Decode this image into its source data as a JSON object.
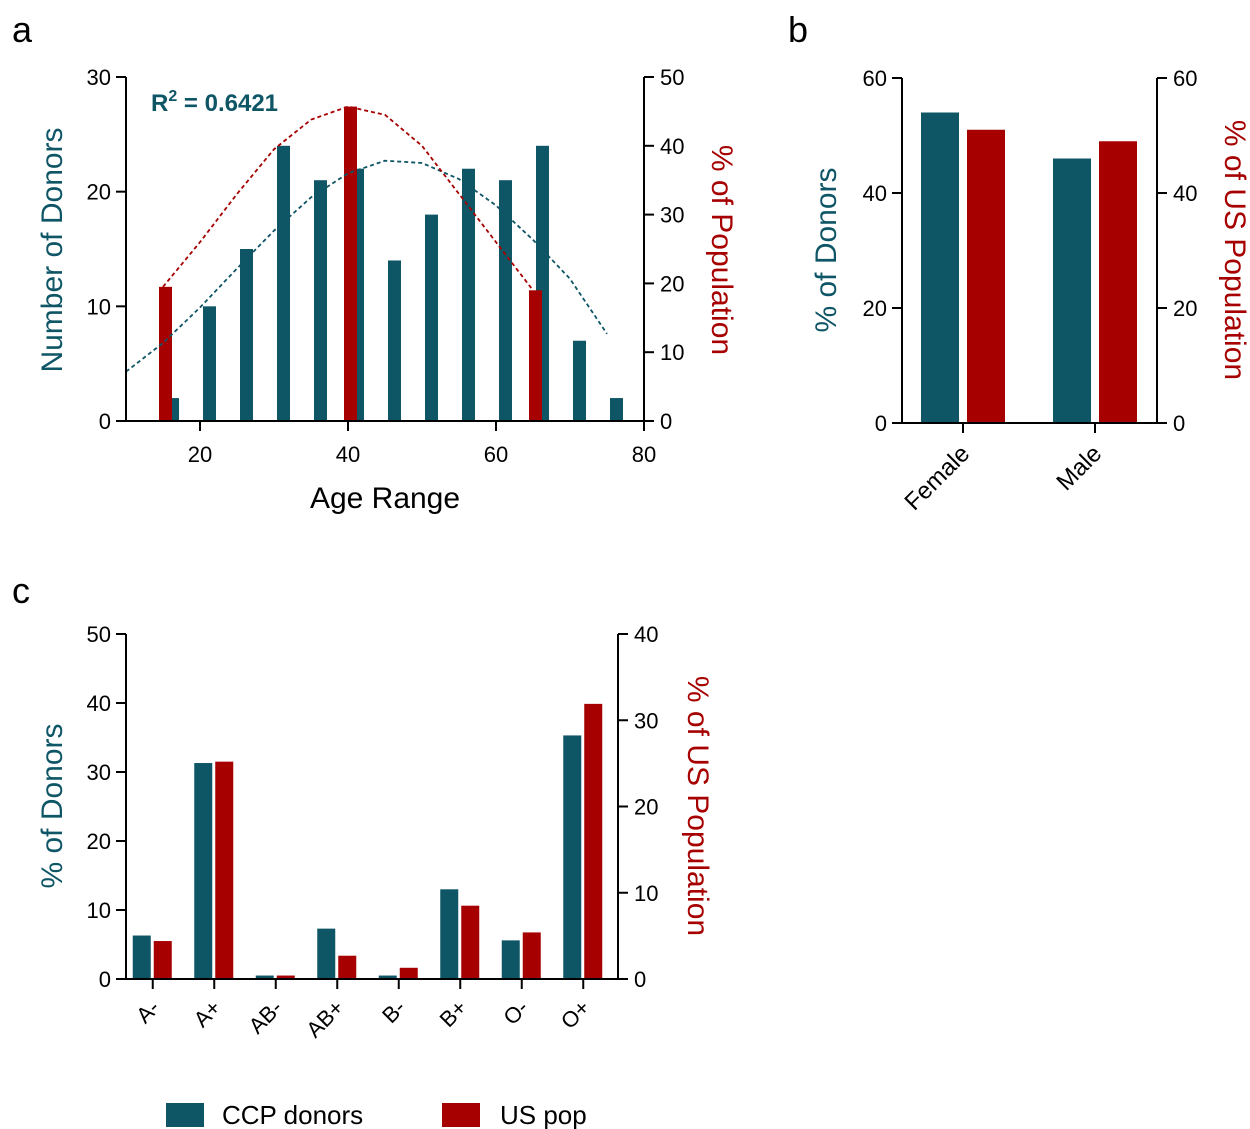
{
  "colors": {
    "donors": "#0e5566",
    "uspop": "#a60000"
  },
  "legend": [
    {
      "label": "CCP donors",
      "color": "#0e5566"
    },
    {
      "label": "US pop",
      "color": "#a60000"
    }
  ],
  "chart_data": [
    {
      "panel": "a",
      "type": "bar",
      "xlabel": "Age Range",
      "ylabel": "Number of Donors",
      "y2label": "% of Population",
      "xlim": [
        10,
        80
      ],
      "xticks": [
        20,
        40,
        60,
        80
      ],
      "ylim": [
        0,
        30
      ],
      "yticks": [
        0,
        10,
        20,
        30
      ],
      "y2lim": [
        0,
        50
      ],
      "y2ticks": [
        0,
        10,
        20,
        30,
        40,
        50
      ],
      "r2_label": "R",
      "r2_sup": "2",
      "r2_value": " = 0.6421",
      "series": [
        {
          "name": "CCP donors",
          "axis": "left",
          "x": [
            10,
            15,
            20,
            25,
            30,
            35,
            40,
            45,
            50,
            55,
            60,
            65,
            70,
            75
          ],
          "values": [
            0,
            2,
            10,
            15,
            24,
            21,
            22,
            14,
            18,
            22,
            21,
            24,
            7,
            2
          ]
        },
        {
          "name": "US pop",
          "axis": "right",
          "x": [
            15,
            40,
            65
          ],
          "values": [
            19.5,
            45.7,
            19.0
          ]
        }
      ],
      "fits": [
        {
          "series": "CCP donors",
          "style": "dashed",
          "axis": "left",
          "x": [
            10,
            15,
            20,
            25,
            30,
            35,
            40,
            45,
            50,
            55,
            60,
            65,
            70,
            75
          ],
          "values": [
            4.3,
            6.8,
            9.9,
            13.3,
            16.6,
            19.5,
            21.6,
            22.7,
            22.5,
            21.1,
            18.8,
            15.8,
            12.4,
            7.6
          ]
        },
        {
          "series": "US pop",
          "style": "dashed",
          "axis": "right",
          "x": [
            15,
            20,
            25,
            30,
            35,
            40,
            45,
            50,
            55,
            60,
            65
          ],
          "values": [
            19.5,
            26,
            33,
            39.5,
            43.8,
            45.7,
            44.5,
            40,
            33,
            26,
            19
          ]
        }
      ]
    },
    {
      "panel": "b",
      "type": "bar",
      "ylabel": "% of Donors",
      "y2label": "% of US Population",
      "categories": [
        "Female",
        "Male"
      ],
      "ylim": [
        0,
        60
      ],
      "yticks": [
        0,
        20,
        40,
        60
      ],
      "y2lim": [
        0,
        60
      ],
      "y2ticks": [
        0,
        20,
        40,
        60
      ],
      "series": [
        {
          "name": "CCP donors",
          "axis": "left",
          "values": [
            54,
            46
          ]
        },
        {
          "name": "US pop",
          "axis": "right",
          "values": [
            51,
            49
          ]
        }
      ]
    },
    {
      "panel": "c",
      "type": "bar",
      "ylabel": "% of Donors",
      "y2label": "% of US Population",
      "categories": [
        "A-",
        "A+",
        "AB-",
        "AB+",
        "B-",
        "B+",
        "O-",
        "O+"
      ],
      "ylim": [
        0,
        50
      ],
      "yticks": [
        0,
        10,
        20,
        30,
        40,
        50
      ],
      "y2lim": [
        0,
        40
      ],
      "y2ticks": [
        0,
        10,
        20,
        30,
        40
      ],
      "series": [
        {
          "name": "CCP donors",
          "axis": "left",
          "values": [
            6.3,
            31.3,
            0.5,
            7.3,
            0.5,
            13,
            5.6,
            35.3
          ]
        },
        {
          "name": "US pop",
          "axis": "right",
          "values": [
            4.4,
            25.2,
            0.4,
            2.7,
            1.3,
            8.5,
            5.4,
            31.9
          ]
        }
      ]
    }
  ]
}
